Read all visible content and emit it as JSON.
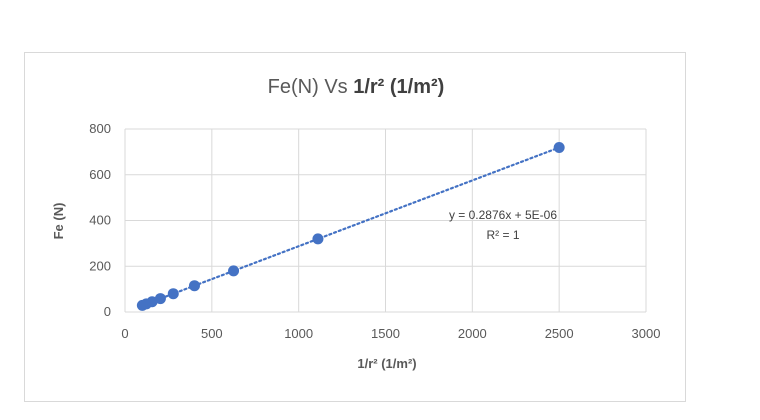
{
  "chart_data": {
    "type": "scatter",
    "title": "Fe(N) Vs 1/r² (1/m²)",
    "title_normal": "Fe(N) Vs ",
    "title_bold": "1/r² (1/m²)",
    "xlabel": "1/r² (1/m²)",
    "ylabel": "Fe (N)",
    "xlim": [
      0,
      3000
    ],
    "ylim": [
      0,
      800
    ],
    "x_ticks": [
      0,
      500,
      1000,
      1500,
      2000,
      2500,
      3000
    ],
    "y_ticks": [
      0,
      200,
      400,
      600,
      800
    ],
    "grid": true,
    "legend": "none",
    "marker_color": "#4472c4",
    "trendline": {
      "type": "linear",
      "style": "dotted",
      "slope": 0.2876,
      "intercept": 5e-06,
      "equation": "y = 0.2876x + 5E-06",
      "r_squared": "R² = 1"
    },
    "points": [
      {
        "x": 100,
        "y": 28.8
      },
      {
        "x": 123,
        "y": 35.4
      },
      {
        "x": 156,
        "y": 44.9
      },
      {
        "x": 204,
        "y": 58.7
      },
      {
        "x": 278,
        "y": 80.0
      },
      {
        "x": 400,
        "y": 115.0
      },
      {
        "x": 625,
        "y": 179.8
      },
      {
        "x": 1111,
        "y": 319.6
      },
      {
        "x": 2500,
        "y": 719.0
      }
    ]
  }
}
